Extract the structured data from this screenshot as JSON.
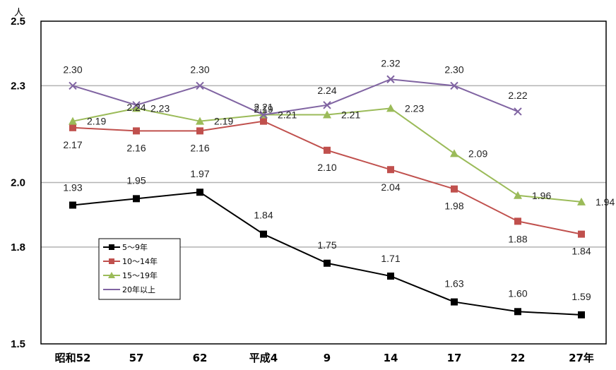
{
  "chart_data": {
    "type": "line",
    "unit_label": "人",
    "categories": [
      "昭和52",
      "57",
      "62",
      "平成4",
      "9",
      "14",
      "17",
      "22",
      "27年"
    ],
    "y_ticks": [
      "1.5",
      "1.8",
      "2.0",
      "2.3",
      "2.5"
    ],
    "ylim": [
      1.5,
      2.5
    ],
    "grid": true,
    "legend_position": "left",
    "series": [
      {
        "name": "5～9年",
        "color": "#000000",
        "marker": "square",
        "values": [
          1.93,
          1.95,
          1.97,
          1.84,
          1.75,
          1.71,
          1.63,
          1.6,
          1.59
        ],
        "labels": [
          "1.93",
          "1.95",
          "1.97",
          "1.84",
          "1.75",
          "1.71",
          "1.63",
          "1.60",
          "1.59"
        ]
      },
      {
        "name": "10～14年",
        "color": "#c0504d",
        "marker": "square",
        "values": [
          2.17,
          2.16,
          2.16,
          2.19,
          2.1,
          2.04,
          1.98,
          1.88,
          1.84
        ],
        "labels": [
          "2.17",
          "2.16",
          "2.16",
          "2.19",
          "2.10",
          "2.04",
          "1.98",
          "1.88",
          "1.84"
        ]
      },
      {
        "name": "15～19年",
        "color": "#9bbb59",
        "marker": "triangle",
        "values": [
          2.19,
          2.23,
          2.19,
          2.21,
          2.21,
          2.23,
          2.09,
          1.96,
          1.94
        ],
        "labels": [
          "2.19",
          "2.23",
          "2.19",
          "2.21",
          "2.21",
          "2.23",
          "2.09",
          "1.96",
          "1.94"
        ]
      },
      {
        "name": "20年以上",
        "color": "#8064a2",
        "marker": "x",
        "values": [
          2.3,
          2.24,
          2.3,
          2.21,
          2.24,
          2.32,
          2.3,
          2.22,
          null
        ],
        "labels": [
          "2.30",
          "2.24",
          "2.30",
          "2.21",
          "2.24",
          "2.32",
          "2.30",
          "2.22",
          null
        ]
      }
    ]
  }
}
